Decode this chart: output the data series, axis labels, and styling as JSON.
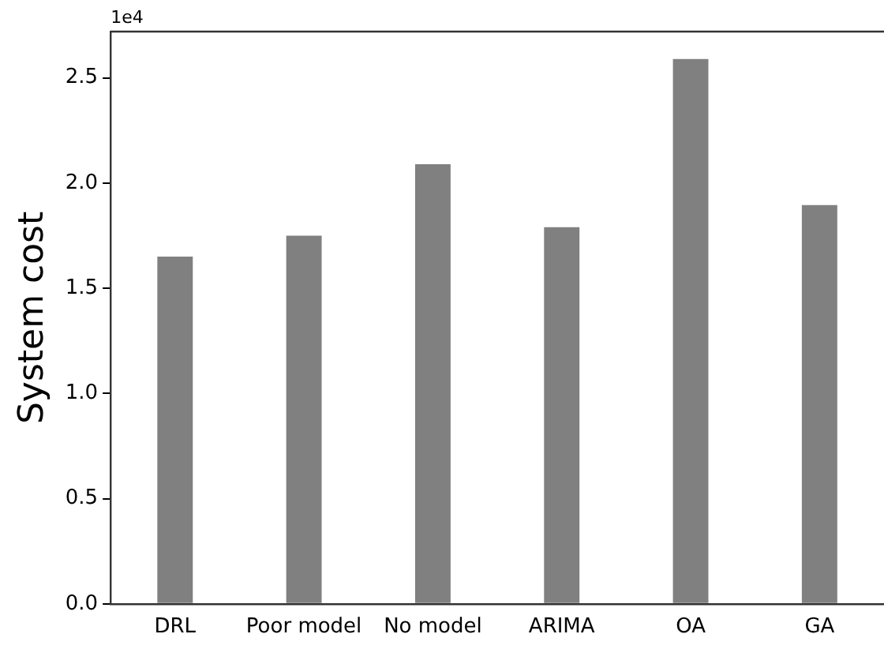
{
  "chart_data": {
    "type": "bar",
    "ylabel": "System cost",
    "categories": [
      "DRL",
      "Poor model",
      "No model",
      "ARIMA",
      "OA",
      "GA"
    ],
    "values": [
      1.65,
      1.75,
      2.09,
      1.79,
      2.59,
      1.895
    ],
    "color": "#808080",
    "ylim": [
      0,
      2.72
    ],
    "yticks": [
      {
        "value": 0,
        "label": "0.0"
      },
      0.5,
      {
        "value": 1,
        "label": "1.0"
      },
      1.5,
      {
        "value": 2,
        "label": "2.0"
      },
      2.5
    ],
    "annotations": [
      "1e4"
    ],
    "grid": false,
    "legend": false
  }
}
